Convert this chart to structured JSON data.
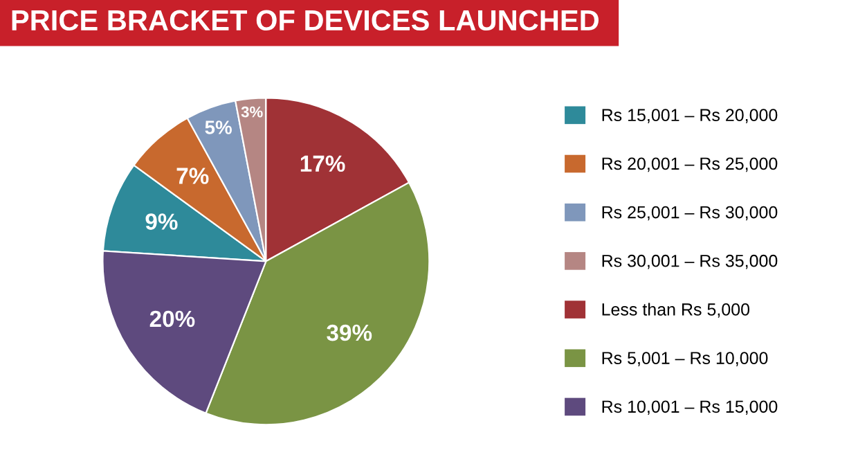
{
  "chart_data": {
    "type": "pie",
    "title": "PRICE BRACKET OF DEVICES LAUNCHED",
    "categories": [
      "Rs 15,001 – Rs 20,000",
      "Rs 20,001 – Rs 25,000",
      "Rs 25,001 – Rs 30,000",
      "Rs 30,001 – Rs 35,000",
      "Less than Rs 5,000",
      "Rs 5,001 – Rs 10,000",
      "Rs 10,001 – Rs 15,000"
    ],
    "values": [
      9,
      7,
      5,
      3,
      17,
      39,
      20
    ],
    "value_labels": [
      "9%",
      "7%",
      "5%",
      "3%",
      "17%",
      "39%",
      "20%"
    ],
    "colors": [
      "#2e8a9a",
      "#c8692e",
      "#7f97bb",
      "#b58683",
      "#a03236",
      "#7a9444",
      "#5e4a7e"
    ],
    "legend": "right"
  }
}
